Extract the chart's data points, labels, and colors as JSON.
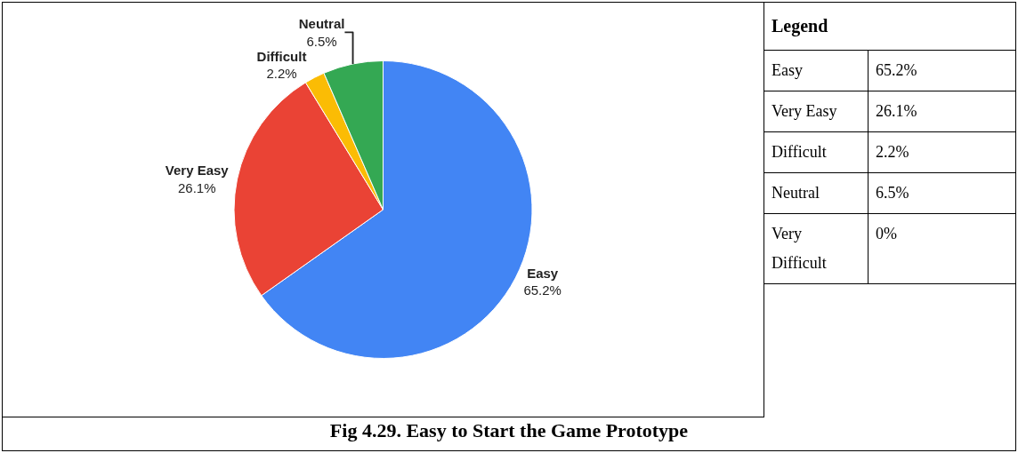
{
  "chart_data": {
    "type": "pie",
    "title": "Fig 4.29. Easy to Start the Game Prototype",
    "legend_title": "Legend",
    "categories": [
      "Easy",
      "Very Easy",
      "Difficult",
      "Neutral",
      "Very Difficult"
    ],
    "values": [
      65.2,
      26.1,
      2.2,
      6.5,
      0
    ],
    "value_labels": [
      "65.2%",
      "26.1%",
      "2.2%",
      "6.5%",
      "0%"
    ],
    "colors": [
      "#4285f4",
      "#ea4335",
      "#fbbc04",
      "#34a853",
      "#ff6d01"
    ]
  }
}
